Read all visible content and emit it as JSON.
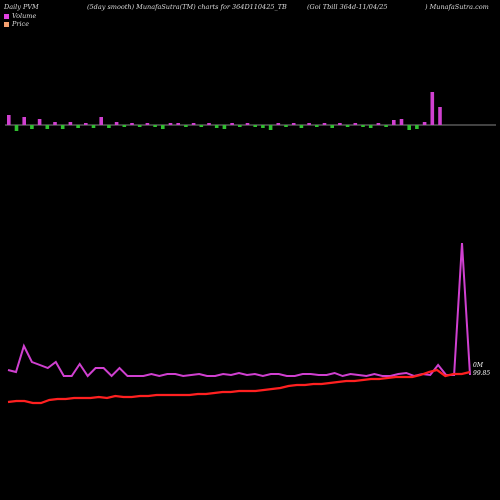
{
  "header": {
    "left": "Daily PVM",
    "mid1": "(5day smooth) MunafaSutra(TM) charts for 364D110425_TB",
    "mid2": "(Goi  Tbill 364d-11/04/25",
    "right": ") MunafaSutra.com"
  },
  "legend": [
    {
      "label": "Volume",
      "color": "#e040e0"
    },
    {
      "label": "Price",
      "color": "#f4a070"
    }
  ],
  "annotation": {
    "line1": "0M",
    "line2": "99.85"
  },
  "colors": {
    "volume_line": "#d040d0",
    "price_line": "#ff2020",
    "up_bar": "#d040d0",
    "down_bar": "#30c030",
    "axis": "#b0b0b0"
  },
  "chart_data": {
    "type": "line",
    "volume_bars": [
      {
        "v": 10,
        "d": "up"
      },
      {
        "v": 6,
        "d": "down"
      },
      {
        "v": 8,
        "d": "up"
      },
      {
        "v": 4,
        "d": "down"
      },
      {
        "v": 6,
        "d": "up"
      },
      {
        "v": 4,
        "d": "down"
      },
      {
        "v": 3,
        "d": "up"
      },
      {
        "v": 4,
        "d": "down"
      },
      {
        "v": 3,
        "d": "up"
      },
      {
        "v": 3,
        "d": "down"
      },
      {
        "v": 2,
        "d": "up"
      },
      {
        "v": 3,
        "d": "down"
      },
      {
        "v": 8,
        "d": "up"
      },
      {
        "v": 3,
        "d": "down"
      },
      {
        "v": 3,
        "d": "up"
      },
      {
        "v": 2,
        "d": "down"
      },
      {
        "v": 2,
        "d": "up"
      },
      {
        "v": 2,
        "d": "down"
      },
      {
        "v": 2,
        "d": "up"
      },
      {
        "v": 2,
        "d": "down"
      },
      {
        "v": 4,
        "d": "down"
      },
      {
        "v": 2,
        "d": "up"
      },
      {
        "v": 2,
        "d": "up"
      },
      {
        "v": 2,
        "d": "down"
      },
      {
        "v": 2,
        "d": "up"
      },
      {
        "v": 2,
        "d": "down"
      },
      {
        "v": 2,
        "d": "up"
      },
      {
        "v": 3,
        "d": "down"
      },
      {
        "v": 4,
        "d": "down"
      },
      {
        "v": 2,
        "d": "up"
      },
      {
        "v": 2,
        "d": "down"
      },
      {
        "v": 2,
        "d": "up"
      },
      {
        "v": 2,
        "d": "down"
      },
      {
        "v": 3,
        "d": "down"
      },
      {
        "v": 5,
        "d": "down"
      },
      {
        "v": 2,
        "d": "up"
      },
      {
        "v": 2,
        "d": "down"
      },
      {
        "v": 2,
        "d": "up"
      },
      {
        "v": 3,
        "d": "down"
      },
      {
        "v": 2,
        "d": "up"
      },
      {
        "v": 2,
        "d": "down"
      },
      {
        "v": 2,
        "d": "up"
      },
      {
        "v": 3,
        "d": "down"
      },
      {
        "v": 2,
        "d": "up"
      },
      {
        "v": 2,
        "d": "down"
      },
      {
        "v": 2,
        "d": "up"
      },
      {
        "v": 2,
        "d": "down"
      },
      {
        "v": 3,
        "d": "down"
      },
      {
        "v": 2,
        "d": "up"
      },
      {
        "v": 2,
        "d": "down"
      },
      {
        "v": 5,
        "d": "up"
      },
      {
        "v": 6,
        "d": "up"
      },
      {
        "v": 5,
        "d": "down"
      },
      {
        "v": 4,
        "d": "down"
      },
      {
        "v": 3,
        "d": "up"
      },
      {
        "v": 33,
        "d": "up"
      },
      {
        "v": 18,
        "d": "up"
      }
    ],
    "volume_line": [
      370,
      372,
      346,
      362,
      365,
      368,
      362,
      376,
      376,
      364,
      376,
      368,
      368,
      376,
      368,
      376,
      376,
      376,
      374,
      376,
      374,
      374,
      376,
      375,
      374,
      376,
      376,
      374,
      375,
      373,
      375,
      374,
      376,
      374,
      374,
      376,
      376,
      374,
      374,
      375,
      375,
      373,
      376,
      374,
      375,
      376,
      374,
      376,
      376,
      374,
      373,
      376,
      374,
      375,
      365,
      375,
      375,
      243,
      375
    ],
    "price_line": [
      402,
      401,
      401,
      403,
      403,
      400,
      399,
      399,
      398,
      398,
      398,
      397,
      398,
      396,
      397,
      397,
      396,
      396,
      395,
      395,
      395,
      395,
      395,
      394,
      394,
      393,
      392,
      392,
      391,
      391,
      391,
      390,
      389,
      388,
      386,
      385,
      385,
      384,
      384,
      383,
      382,
      381,
      381,
      380,
      379,
      379,
      378,
      377,
      377,
      377,
      375,
      372,
      370,
      376,
      374,
      374,
      372
    ]
  }
}
